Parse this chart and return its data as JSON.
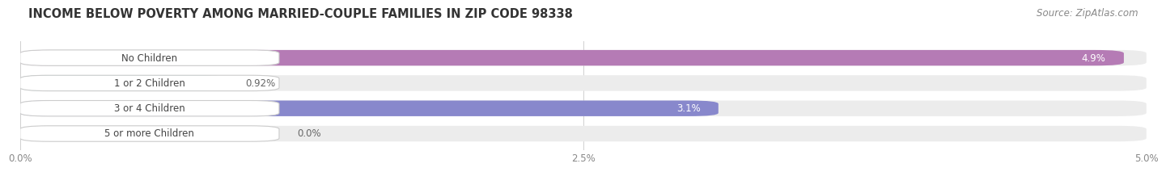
{
  "title": "INCOME BELOW POVERTY AMONG MARRIED-COUPLE FAMILIES IN ZIP CODE 98338",
  "source": "Source: ZipAtlas.com",
  "categories": [
    "No Children",
    "1 or 2 Children",
    "3 or 4 Children",
    "5 or more Children"
  ],
  "values": [
    4.9,
    0.92,
    3.1,
    0.0
  ],
  "value_labels": [
    "4.9%",
    "0.92%",
    "3.1%",
    "0.0%"
  ],
  "bar_colors": [
    "#b57bb5",
    "#5dbcb8",
    "#8888cc",
    "#f0a0b8"
  ],
  "xlim": [
    0,
    5.0
  ],
  "xtick_labels": [
    "0.0%",
    "2.5%",
    "5.0%"
  ],
  "title_fontsize": 10.5,
  "source_fontsize": 8.5,
  "label_fontsize": 8.5,
  "value_fontsize": 8.5,
  "bar_height": 0.62,
  "background_color": "#ffffff",
  "bar_background_color": "#ececec",
  "label_bg_color": "#ffffff",
  "grid_color": "#d0d0d0",
  "text_color": "#444444",
  "value_inside_color": "#ffffff",
  "value_outside_color": "#666666"
}
